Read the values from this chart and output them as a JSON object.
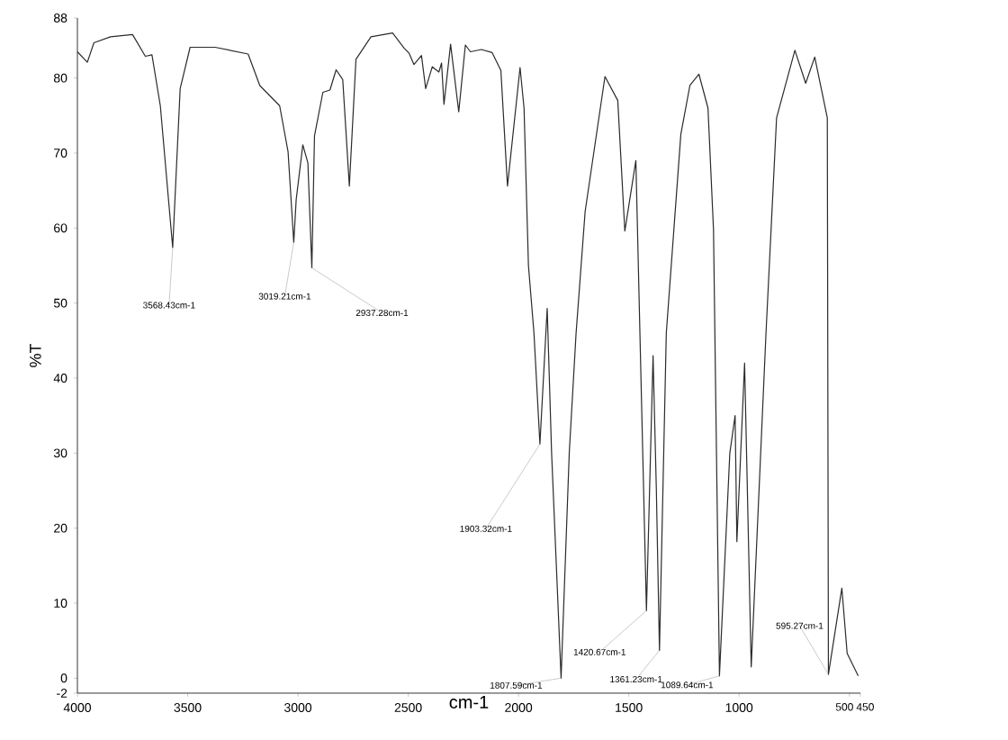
{
  "chart_data": {
    "type": "line",
    "xlabel": "cm-1",
    "ylabel": "%T",
    "color": "#2b2b2b",
    "marker": "none",
    "line_style": "solid",
    "xlim": [
      4000,
      450
    ],
    "ylim": [
      -2,
      88
    ],
    "xticks": [
      4000,
      3500,
      3000,
      2500,
      2000,
      1500,
      1000,
      500,
      450
    ],
    "yticks": [
      -2,
      0,
      10,
      20,
      30,
      40,
      50,
      60,
      70,
      80,
      88
    ],
    "x": [
      4000,
      3955,
      3925,
      3850,
      3750,
      3692,
      3662,
      3624,
      3568,
      3534,
      3489,
      3376,
      3226,
      3173,
      3083,
      3045,
      3019,
      3008,
      2978,
      2955,
      2937,
      2925,
      2887,
      2855,
      2827,
      2797,
      2767,
      2737,
      2669,
      2571,
      2519,
      2496,
      2474,
      2440,
      2421,
      2391,
      2361,
      2349,
      2338,
      2308,
      2271,
      2241,
      2218,
      2168,
      2120,
      2080,
      2050,
      1993,
      1975,
      1955,
      1930,
      1903,
      1870,
      1850,
      1807,
      1770,
      1739,
      1698,
      1608,
      1550,
      1518,
      1468,
      1420,
      1390,
      1375,
      1361,
      1330,
      1264,
      1223,
      1182,
      1141,
      1116,
      1089,
      1042,
      1018,
      1010,
      975,
      945,
      878,
      830,
      747,
      698,
      657,
      600,
      595,
      534,
      510,
      460
    ],
    "values": [
      83.5,
      82.1,
      84.7,
      85.5,
      85.8,
      82.9,
      83.1,
      76.3,
      57.4,
      78.6,
      84.1,
      84.1,
      83.2,
      79,
      76.3,
      70.2,
      58.1,
      63.8,
      71.1,
      68.7,
      54.7,
      72.3,
      78.1,
      78.4,
      81.1,
      79.8,
      65.6,
      82.5,
      85.5,
      86,
      84,
      83.3,
      81.8,
      83,
      78.6,
      81.5,
      80.8,
      82,
      76.5,
      84.5,
      75.5,
      84.4,
      83.5,
      83.8,
      83.4,
      81,
      65.6,
      81.4,
      76,
      55,
      46,
      31.2,
      49.3,
      30,
      0,
      30,
      46,
      62.2,
      80.2,
      77,
      59.6,
      69,
      9,
      43,
      25,
      3.7,
      46,
      72.5,
      79,
      80.5,
      76,
      59.8,
      0.3,
      30,
      35,
      18.2,
      42,
      1.5,
      46,
      74.7,
      83.7,
      79.3,
      82.8,
      74.7,
      0.5,
      12,
      3.3,
      0.3
    ],
    "annotations": [
      {
        "text": "3568.43cm-1",
        "x": 3568,
        "y": 57.4
      },
      {
        "text": "3019.21cm-1",
        "x": 3019,
        "y": 58.1
      },
      {
        "text": "2937.28cm-1",
        "x": 2937,
        "y": 54.7
      },
      {
        "text": "1903.32cm-1",
        "x": 1903,
        "y": 31.2
      },
      {
        "text": "1807.59cm-1",
        "x": 1807,
        "y": 0
      },
      {
        "text": "1420.67cm-1",
        "x": 1420,
        "y": 9
      },
      {
        "text": "1361.23cm-1",
        "x": 1361,
        "y": 3.7
      },
      {
        "text": "1089.64cm-1",
        "x": 1089,
        "y": 0.3
      },
      {
        "text": "595.27cm-1",
        "x": 595,
        "y": 0.5
      }
    ]
  }
}
